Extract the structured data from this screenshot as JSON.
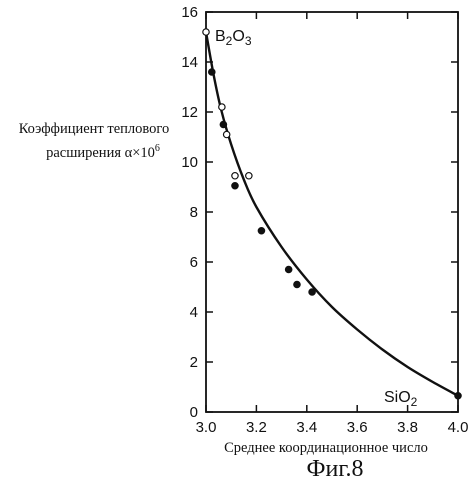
{
  "chart_data": {
    "type": "scatter",
    "title": "",
    "ylabel_line1": "Коэффициент теплового",
    "ylabel_line2": "расширения α×10",
    "ylabel_exponent": "6",
    "xlabel": "Среднее координационное число",
    "figure_caption": "Фиг.8",
    "xlim": [
      3.0,
      4.0
    ],
    "ylim": [
      0,
      16
    ],
    "x_ticks": [
      3.0,
      3.2,
      3.4,
      3.6,
      3.8,
      4.0
    ],
    "x_tick_labels": [
      "3.0",
      "3.2",
      "3.4",
      "3.6",
      "3.8",
      "4.0"
    ],
    "y_ticks": [
      0,
      2,
      4,
      6,
      8,
      10,
      12,
      14,
      16
    ],
    "y_tick_labels": [
      "0",
      "2",
      "4",
      "6",
      "8",
      "10",
      "12",
      "14",
      "16"
    ],
    "grid": false,
    "annotations": {
      "b2o3_main": "B",
      "b2o3_sub1": "2",
      "b2o3_mid": "O",
      "b2o3_sub2": "3",
      "sio2_main": "SiO",
      "sio2_sub": "2"
    },
    "series": [
      {
        "marker": "open-circle",
        "x": [
          3.0,
          3.063,
          3.082,
          3.115,
          3.17
        ],
        "y": [
          15.2,
          12.2,
          11.1,
          9.45,
          9.45
        ]
      },
      {
        "marker": "filled-circle",
        "x": [
          3.023,
          3.069,
          3.115,
          3.22,
          3.328,
          3.361,
          3.421,
          4.0
        ],
        "y": [
          13.6,
          11.5,
          9.05,
          7.25,
          5.7,
          5.1,
          4.8,
          0.65
        ]
      }
    ],
    "curve": {
      "x": [
        3.0,
        3.03,
        3.06,
        3.1,
        3.15,
        3.2,
        3.3,
        3.4,
        3.5,
        3.6,
        3.7,
        3.8,
        3.9,
        4.0
      ],
      "y": [
        15.2,
        13.5,
        12.1,
        10.7,
        9.3,
        8.2,
        6.6,
        5.3,
        4.2,
        3.3,
        2.5,
        1.8,
        1.2,
        0.65
      ]
    }
  }
}
